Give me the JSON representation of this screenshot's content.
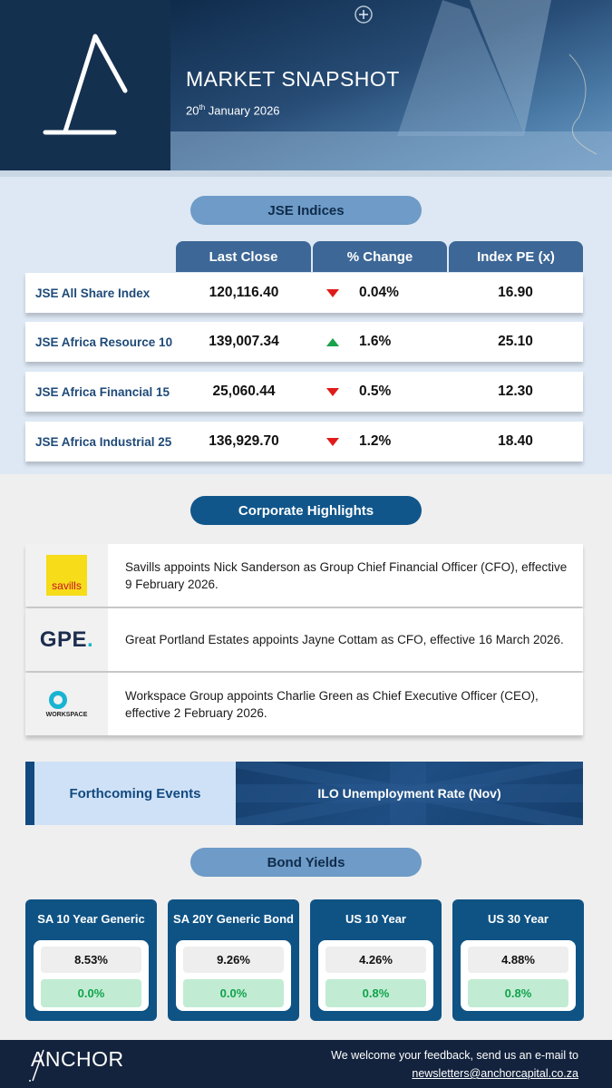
{
  "header": {
    "title": "MARKET SNAPSHOT",
    "date_day": "20",
    "date_suffix": "th",
    "date_rest": " January 2026"
  },
  "jse": {
    "title": "JSE Indices",
    "columns": [
      "Last Close",
      "% Change",
      "Index PE (x)"
    ],
    "rows": [
      {
        "name": "JSE All Share Index",
        "close": "120,116.40",
        "change": "0.04%",
        "direction": "down",
        "pe": "16.90"
      },
      {
        "name": "JSE Africa Resource 10",
        "close": "139,007.34",
        "change": "1.6%",
        "direction": "up",
        "pe": "25.10"
      },
      {
        "name": "JSE Africa Financial 15",
        "close": "25,060.44",
        "change": "0.5%",
        "direction": "down",
        "pe": "12.30"
      },
      {
        "name": "JSE Africa Industrial 25",
        "close": "136,929.70",
        "change": "1.2%",
        "direction": "down",
        "pe": "18.40"
      }
    ]
  },
  "corporate": {
    "title": "Corporate Highlights",
    "items": [
      {
        "logo": "savills",
        "text": "Savills appoints Nick Sanderson as Group Chief Financial Officer (CFO), effective 9 February 2026."
      },
      {
        "logo": "GPE",
        "text": "Great Portland Estates appoints Jayne Cottam as CFO, effective 16 March 2026."
      },
      {
        "logo": "WORKSPACE",
        "text": "Workspace Group appoints Charlie Green as Chief Executive Officer (CEO), effective 2 February 2026."
      }
    ]
  },
  "events": {
    "label": "Forthcoming Events",
    "event": "ILO Unemployment Rate (Nov)"
  },
  "bonds": {
    "title": "Bond Yields",
    "items": [
      {
        "name": "SA 10 Year Generic",
        "yield": "8.53%",
        "change": "0.0%"
      },
      {
        "name": "SA 20Y Generic Bond",
        "yield": "9.26%",
        "change": "0.0%"
      },
      {
        "name": "US 10 Year",
        "yield": "4.26%",
        "change": "0.8%"
      },
      {
        "name": "US 30 Year",
        "yield": "4.88%",
        "change": "0.8%"
      }
    ]
  },
  "footer": {
    "brand": "ANCHOR",
    "message": "We welcome your feedback, send us an e-mail to",
    "email": "newsletters@anchorcapital.co.za"
  },
  "colors": {
    "navy": "#14304f",
    "accent_blue": "#10568b",
    "down": "#e01b1b",
    "up": "#1aa24b"
  }
}
